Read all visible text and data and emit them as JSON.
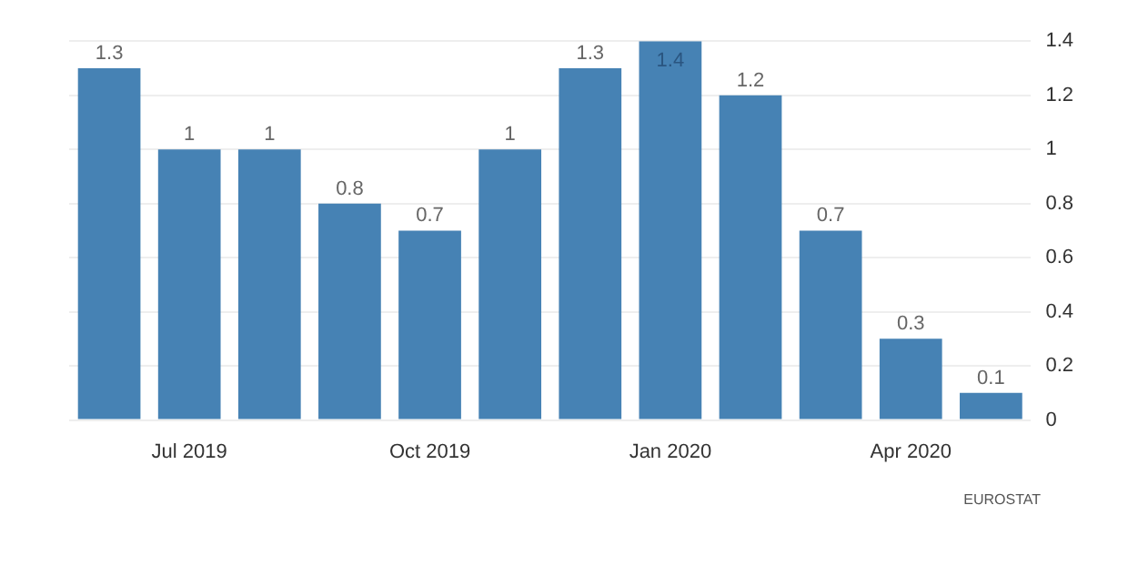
{
  "chart_data": {
    "type": "bar",
    "categories": [
      null,
      "Jul 2019",
      null,
      null,
      "Oct 2019",
      null,
      null,
      "Jan 2020",
      null,
      null,
      "Apr 2020",
      null
    ],
    "values": [
      1.3,
      1,
      1,
      0.8,
      0.7,
      1,
      1.3,
      1.4,
      1.2,
      0.7,
      0.3,
      0.1
    ],
    "color": "#4682b4",
    "ylim": [
      0,
      1.4
    ],
    "yticks": [
      0,
      0.2,
      0.4,
      0.6,
      0.8,
      1,
      1.2,
      1.4
    ],
    "grid": "y",
    "data_labels": true,
    "legend": false,
    "annotations": [
      "EUROSTAT"
    ]
  }
}
